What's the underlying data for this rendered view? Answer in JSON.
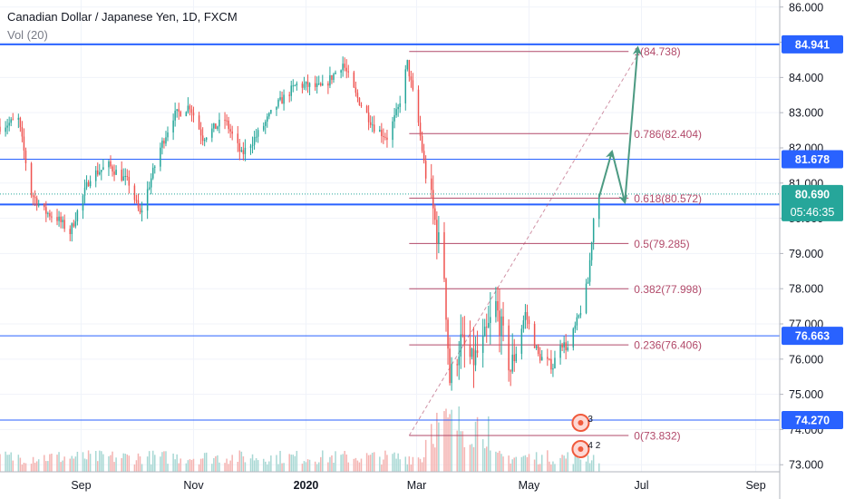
{
  "header": {
    "title": "Canadian Dollar / Japanese Yen, 1D, FXCM",
    "volume_label": "Vol (20)"
  },
  "colors": {
    "up": "#26a69a",
    "down": "#ef5350",
    "vol_up": "#a8d8d4",
    "vol_down": "#f4b3b1",
    "hline": "#2962ff",
    "fib": "#b24a6a",
    "arrow": "#4c9a82",
    "last_price_bg": "#26a69a",
    "axis_text": "#131722"
  },
  "chart_data": {
    "type": "candlestick",
    "title": "Canadian Dollar / Japanese Yen, 1D, FXCM",
    "ylim": [
      72.8,
      86.2
    ],
    "y_ticks": [
      "86.000",
      "85.000",
      "84.000",
      "83.000",
      "82.000",
      "81.000",
      "80.000",
      "79.000",
      "78.000",
      "77.000",
      "76.000",
      "75.000",
      "74.000",
      "73.000"
    ],
    "x_ticks": [
      {
        "label": "Sep",
        "date": "2019-09-01"
      },
      {
        "label": "Nov",
        "date": "2019-11-01"
      },
      {
        "label": "2020",
        "date": "2020-01-01"
      },
      {
        "label": "Mar",
        "date": "2020-03-01"
      },
      {
        "label": "May",
        "date": "2020-05-01"
      },
      {
        "label": "Jul",
        "date": "2020-07-01"
      },
      {
        "label": "Sep",
        "date": "2020-09-01"
      }
    ],
    "x_range": [
      "2019-07-19",
      "2020-09-14"
    ],
    "price_path": [
      [
        "2019-07-19",
        82.6
      ],
      [
        "2019-07-29",
        82.8
      ],
      [
        "2019-08-05",
        80.7
      ],
      [
        "2019-08-12",
        80.2
      ],
      [
        "2019-08-19",
        80.0
      ],
      [
        "2019-08-26",
        79.6
      ],
      [
        "2019-09-06",
        81.2
      ],
      [
        "2019-09-16",
        81.5
      ],
      [
        "2019-09-27",
        81.0
      ],
      [
        "2019-10-03",
        80.1
      ],
      [
        "2019-10-14",
        82.0
      ],
      [
        "2019-10-21",
        82.9
      ],
      [
        "2019-10-30",
        83.2
      ],
      [
        "2019-11-06",
        82.3
      ],
      [
        "2019-11-18",
        82.8
      ],
      [
        "2019-11-27",
        81.8
      ],
      [
        "2019-12-06",
        82.4
      ],
      [
        "2019-12-16",
        83.2
      ],
      [
        "2019-12-27",
        83.8
      ],
      [
        "2020-01-10",
        83.7
      ],
      [
        "2020-01-21",
        84.4
      ],
      [
        "2020-01-28",
        83.5
      ],
      [
        "2020-02-07",
        82.6
      ],
      [
        "2020-02-14",
        82.3
      ],
      [
        "2020-02-20",
        83.1
      ],
      [
        "2020-02-25",
        84.4
      ],
      [
        "2020-03-02",
        82.7
      ],
      [
        "2020-03-06",
        81.2
      ],
      [
        "2020-03-10",
        80.2
      ],
      [
        "2020-03-16",
        78.4
      ],
      [
        "2020-03-19",
        75.4
      ],
      [
        "2020-03-25",
        76.5
      ],
      [
        "2020-03-31",
        75.9
      ],
      [
        "2020-04-06",
        76.4
      ],
      [
        "2020-04-13",
        77.5
      ],
      [
        "2020-04-21",
        75.7
      ],
      [
        "2020-04-29",
        77.3
      ],
      [
        "2020-05-06",
        76.1
      ],
      [
        "2020-05-14",
        75.8
      ],
      [
        "2020-05-18",
        76.5
      ],
      [
        "2020-05-22",
        76.3
      ],
      [
        "2020-05-28",
        77.2
      ],
      [
        "2020-06-02",
        78.2
      ],
      [
        "2020-06-05",
        80.0
      ],
      [
        "2020-06-08",
        80.69
      ]
    ],
    "horizontal_levels": [
      {
        "value": 84.941,
        "label": "84.941"
      },
      {
        "value": 81.678,
        "label": "81.678"
      },
      {
        "value": 80.393,
        "label": "80.393"
      },
      {
        "value": 76.663,
        "label": "76.663"
      },
      {
        "value": 74.27,
        "label": "74.270"
      }
    ],
    "fibonacci": {
      "start_date": "2020-02-26",
      "end_date": "2020-06-24",
      "levels": [
        {
          "ratio": "1",
          "value": 84.738,
          "label": "1(84.738)"
        },
        {
          "ratio": "0.786",
          "value": 82.404,
          "label": "0.786(82.404)"
        },
        {
          "ratio": "0.618",
          "value": 80.572,
          "label": "0.618(80.572)"
        },
        {
          "ratio": "0.5",
          "value": 79.285,
          "label": "0.5(79.285)"
        },
        {
          "ratio": "0.382",
          "value": 77.998,
          "label": "0.382(77.998)"
        },
        {
          "ratio": "0.236",
          "value": 76.406,
          "label": "0.236(76.406)"
        },
        {
          "ratio": "0",
          "value": 73.832,
          "label": "0(73.832)"
        }
      ]
    },
    "trend_line": {
      "from": [
        "2020-02-26",
        73.832
      ],
      "to": [
        "2020-06-30",
        84.738
      ]
    },
    "projection_arrows": [
      {
        "from": [
          "2020-06-08",
          80.6
        ],
        "to": [
          "2020-06-15",
          81.9
        ]
      },
      {
        "from": [
          "2020-06-15",
          81.9
        ],
        "to": [
          "2020-06-22",
          80.45
        ]
      },
      {
        "from": [
          "2020-06-22",
          80.45
        ],
        "to": [
          "2020-06-29",
          84.85
        ]
      }
    ],
    "last_price": {
      "value": 80.69,
      "label": "80.690",
      "countdown": "05:46:35"
    },
    "event_badges": [
      {
        "date": "2020-05-29",
        "count": "3"
      },
      {
        "date": "2020-05-29",
        "count": "4 2"
      }
    ]
  }
}
